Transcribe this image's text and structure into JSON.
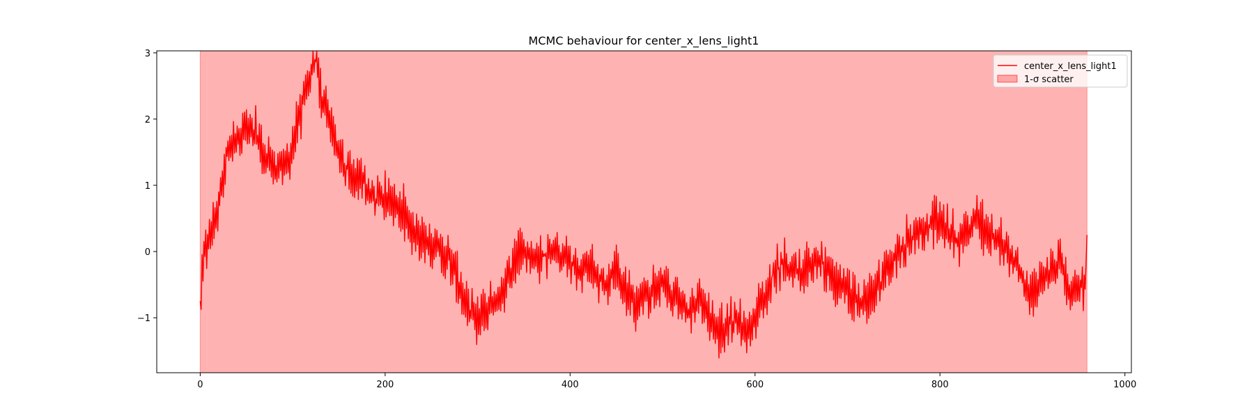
{
  "chart_data": {
    "type": "line",
    "title": "MCMC behaviour for center_x_lens_light1",
    "xlabel": "",
    "ylabel": "",
    "xlim": [
      -47,
      1007
    ],
    "ylim": [
      -1.83,
      3.03
    ],
    "x_ticks": [
      0,
      200,
      400,
      600,
      800,
      1000
    ],
    "x_tick_labels": [
      "0",
      "200",
      "400",
      "600",
      "800",
      "1000"
    ],
    "y_ticks": [
      -1,
      0,
      1,
      2,
      3
    ],
    "y_tick_labels": [
      "−1",
      "0",
      "1",
      "2",
      "3"
    ],
    "grid": false,
    "legend_position": "top-right",
    "series": [
      {
        "name": "center_x_lens_light1",
        "kind": "line",
        "color": "#ff0000",
        "n_points": 960,
        "approx_trend": {
          "x": [
            0,
            5,
            10,
            20,
            30,
            40,
            50,
            60,
            70,
            80,
            90,
            100,
            110,
            120,
            125,
            130,
            140,
            150,
            160,
            170,
            180,
            190,
            200,
            210,
            220,
            230,
            240,
            250,
            260,
            270,
            280,
            290,
            300,
            310,
            320,
            330,
            340,
            350,
            360,
            370,
            380,
            390,
            400,
            410,
            420,
            430,
            440,
            450,
            460,
            470,
            480,
            490,
            500,
            510,
            520,
            530,
            540,
            550,
            560,
            570,
            580,
            590,
            600,
            610,
            620,
            630,
            640,
            650,
            660,
            670,
            680,
            690,
            700,
            710,
            720,
            730,
            740,
            750,
            760,
            770,
            780,
            790,
            800,
            810,
            820,
            830,
            840,
            850,
            860,
            870,
            880,
            890,
            900,
            910,
            920,
            930,
            940,
            950,
            959
          ],
          "y": [
            -0.75,
            0.1,
            0.1,
            0.7,
            1.6,
            1.7,
            1.8,
            1.8,
            1.4,
            1.3,
            1.2,
            1.6,
            2.2,
            2.7,
            2.9,
            2.4,
            2.0,
            1.5,
            1.2,
            1.1,
            1.0,
            0.8,
            0.9,
            0.7,
            0.6,
            0.3,
            0.2,
            0.1,
            0.0,
            -0.1,
            -0.5,
            -0.9,
            -1.0,
            -0.9,
            -0.8,
            -0.5,
            -0.1,
            0.0,
            -0.1,
            -0.1,
            0.0,
            0.0,
            -0.1,
            -0.3,
            -0.2,
            -0.4,
            -0.5,
            -0.3,
            -0.6,
            -0.8,
            -0.7,
            -0.6,
            -0.5,
            -0.6,
            -0.8,
            -0.9,
            -0.7,
            -1.0,
            -1.2,
            -1.1,
            -1.0,
            -1.2,
            -1.0,
            -0.7,
            -0.3,
            -0.2,
            -0.2,
            -0.3,
            -0.2,
            -0.1,
            -0.3,
            -0.5,
            -0.6,
            -0.7,
            -0.8,
            -0.6,
            -0.3,
            -0.1,
            0.1,
            0.2,
            0.3,
            0.4,
            0.5,
            0.3,
            0.1,
            0.4,
            0.5,
            0.3,
            0.2,
            0.1,
            -0.1,
            -0.4,
            -0.7,
            -0.5,
            -0.3,
            -0.2,
            -0.6,
            -0.5,
            -0.5
          ]
        },
        "noise_amplitude": 0.55,
        "value_range": [
          -1.82,
          3.02
        ],
        "first_value": -0.75,
        "last_value": 0.25
      },
      {
        "name": "1-σ scatter",
        "kind": "band",
        "color": "#ff0000",
        "opacity": 0.3,
        "x_range": [
          0,
          959
        ],
        "y_range": [
          -1.83,
          3.03
        ]
      }
    ]
  }
}
